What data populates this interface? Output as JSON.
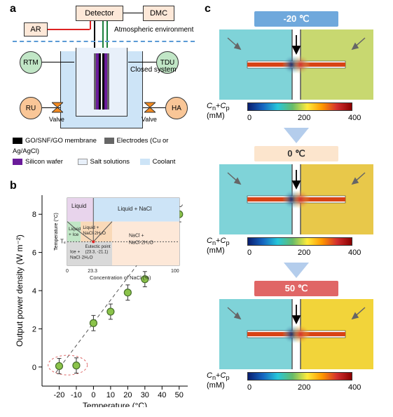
{
  "panel_labels": {
    "a": "a",
    "b": "b",
    "c": "c"
  },
  "panel_a": {
    "boxes": {
      "ar": "AR",
      "detector": "Detector",
      "dmc": "DMC",
      "rtm": "RTM",
      "tdu": "TDU",
      "ru": "RU",
      "ha": "HA"
    },
    "labels": {
      "atm": "Atmospheric environment",
      "closed": "Closed system",
      "valve1": "Valve",
      "valve2": "Valve"
    },
    "legend": {
      "l1": "GO/SNF/GO membrane",
      "l2": "Electrodes (Cu or Ag/AgCl)",
      "l3": "Silicon wafer",
      "l4": "Salt solutions",
      "l5": "Coolant"
    },
    "colors": {
      "box_bg": "#fde8d8",
      "box_border": "#444",
      "rtm_bg": "#c1e6c6",
      "tdu_bg": "#c1e6c6",
      "ru_bg": "#f9c697",
      "ha_bg": "#f9c697",
      "red_line": "#d22",
      "green_line": "#1a7f3a",
      "black_line": "#000",
      "dashed_blue": "#5b9bd5",
      "coolant": "#cde4f7",
      "salt": "#e8f0fa",
      "membrane": "#000",
      "electrode": "#666",
      "silicon": "#6a1b9a"
    }
  },
  "panel_b": {
    "type": "scatter",
    "xlabel": "Temperature (°C)",
    "ylabel": "Output power density (W m⁻²)",
    "xlim": [
      -30,
      55
    ],
    "ylim": [
      -1,
      9
    ],
    "xticks": [
      -20,
      -10,
      0,
      10,
      20,
      30,
      40,
      50
    ],
    "yticks": [
      0,
      2,
      4,
      6,
      8
    ],
    "points": [
      {
        "x": -20,
        "y": 0.05
      },
      {
        "x": -10,
        "y": 0.08
      },
      {
        "x": 0,
        "y": 2.3
      },
      {
        "x": 10,
        "y": 2.9
      },
      {
        "x": 20,
        "y": 3.9
      },
      {
        "x": 30,
        "y": 4.6
      },
      {
        "x": 40,
        "y": 7.1
      },
      {
        "x": 50,
        "y": 8.0
      }
    ],
    "marker_color": "#8bc34a",
    "marker_edge": "#466d2a",
    "marker_size": 5,
    "errbar": 0.4,
    "dashed_line": "#555",
    "inset": {
      "title_lines": [
        "Temperature (°C)"
      ],
      "regions": {
        "liquid": "Liquid",
        "liquid_ice": "Liquid\n+ Ice",
        "liquid_nacl": "Liquid + NaCl",
        "liquid_hyd": "Liquid +\nNaCl·2H₂O",
        "ice_hyd": "Ice +\nNaCl·2H₂O",
        "nacl_hyd": "NaCl +\nNaCl·2H₂O",
        "eutectic": "Eutectic point\n(23.3, -21.1)"
      },
      "xlabel": "Concentration of NaCl (%)",
      "xticks": [
        "0",
        "23.3",
        "100"
      ],
      "te_label": "Tₑ",
      "colors": {
        "liquid": "#e8d4ec",
        "liquid_ice": "#c1e6c6",
        "liquid_nacl": "#cde4f7",
        "liquid_hyd": "#f9d9b8",
        "ice_hyd": "#d9d9d9",
        "nacl_hyd": "#fde8d8",
        "border": "#888"
      }
    }
  },
  "panel_c": {
    "temps": [
      {
        "label": "-20 ℃",
        "bg": "#6fa8dc",
        "right_hue": "#c8d870"
      },
      {
        "label": "0 ℃",
        "bg": "#fce5cd",
        "right_hue": "#e8c84a",
        "text": "#333"
      },
      {
        "label": "50 ℃",
        "bg": "#e06666",
        "right_hue": "#f2d43a"
      }
    ],
    "colorbar": {
      "label": "Cₙ+Cₚ\n(mM)",
      "ticks": [
        "0",
        "200",
        "400"
      ],
      "gradient": [
        "#0a1e6f",
        "#1565c0",
        "#26c6da",
        "#66bb6a",
        "#ffeb3b",
        "#ff9800",
        "#d32f2f",
        "#8b0000"
      ]
    },
    "sim_colors": {
      "left_bg": "#7fd3d8",
      "membrane": "#d84315",
      "divider": "#555"
    }
  }
}
